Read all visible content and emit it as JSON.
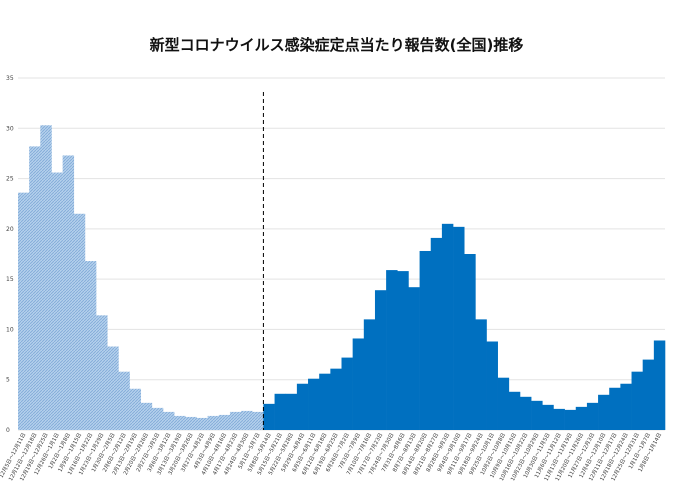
{
  "chart_data": {
    "type": "bar",
    "title": "新型コロナウイルス感染症定点当たり報告数(全国)推移",
    "xlabel": "",
    "ylabel": "",
    "ylim": [
      0,
      35
    ],
    "yticks": [
      0,
      5,
      10,
      15,
      20,
      25,
      30,
      35
    ],
    "grid": true,
    "legend": "none",
    "colors": {
      "before": "#9dc3e6",
      "after": "#0070c0",
      "divider": "#000000"
    },
    "categories": [
      "12月5日～12月11日",
      "12月12日～12月18日",
      "12月19日～12月25日",
      "12月26日～1月1日",
      "1月2日～1月8日",
      "1月9日～1月15日",
      "1月16日～1月22日",
      "1月23日～1月29日",
      "1月30日～2月5日",
      "2月6日～2月12日",
      "2月13日～2月19日",
      "2月20日～2月26日",
      "2月27日～3月5日",
      "3月6日～3月12日",
      "3月13日～3月19日",
      "3月20日～3月26日",
      "3月27日～4月2日",
      "4月3日～4月9日",
      "4月10日～4月16日",
      "4月17日～4月23日",
      "4月24日～4月30日",
      "5月1日～5月7日",
      "5月8日～5月14日",
      "5月15日～5月21日",
      "5月22日～5月28日",
      "5月29日～6月4日",
      "6月5日～6月11日",
      "6月12日～6月18日",
      "6月19日～6月25日",
      "6月26日～7月2日",
      "7月3日～7月9日",
      "7月10日～7月16日",
      "7月17日～7月23日",
      "7月24日～7月30日",
      "7月31日～8月6日",
      "8月7日～8月13日",
      "8月14日～8月20日",
      "8月21日～8月27日",
      "8月28日～9月3日",
      "9月4日～9月10日",
      "9月11日～9月17日",
      "9月18日～9月24日",
      "9月25日～10月1日",
      "10月2日～10月8日",
      "10月9日～10月15日",
      "10月16日～10月22日",
      "10月23日～10月29日",
      "10月30日～11月5日",
      "11月6日～11月12日",
      "11月13日～11月19日",
      "11月20日～11月26日",
      "11月27日～12月3日",
      "12月4日～12月10日",
      "12月11日～12月17日",
      "12月18日～12月24日",
      "12月25日～12月31日",
      "1月1日～1月7日",
      "1月8日～1月14日"
    ],
    "values": [
      23.6,
      28.2,
      30.3,
      25.6,
      27.3,
      21.5,
      16.8,
      11.4,
      8.3,
      5.8,
      4.1,
      2.7,
      2.2,
      1.8,
      1.4,
      1.3,
      1.2,
      1.4,
      1.5,
      1.8,
      1.9,
      1.8,
      2.6,
      3.6,
      3.6,
      4.6,
      5.1,
      5.6,
      6.1,
      7.2,
      9.1,
      11.0,
      13.9,
      15.9,
      15.8,
      14.2,
      17.8,
      19.1,
      20.5,
      20.2,
      17.5,
      11.0,
      8.8,
      5.2,
      3.8,
      3.3,
      2.9,
      2.5,
      2.1,
      2.0,
      2.3,
      2.7,
      3.5,
      4.2,
      4.6,
      5.8,
      7.0,
      8.9
    ],
    "divider_after_index": 21
  }
}
